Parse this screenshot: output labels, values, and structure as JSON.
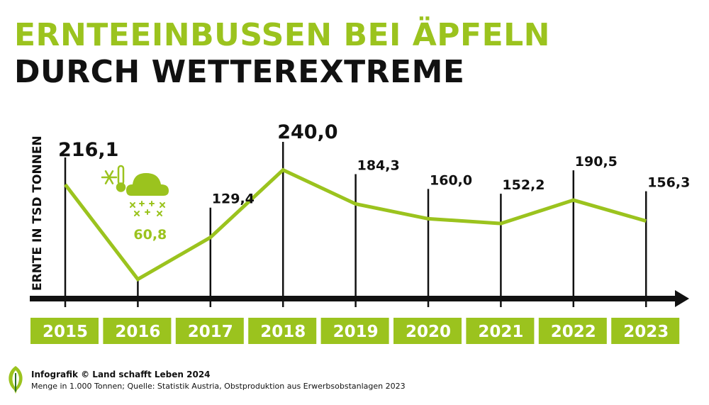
{
  "header": {
    "title_line1": "ERNTEEINBUSSEN BEI ÄPFELN",
    "title_line2": "DURCH WETTEREXTREME"
  },
  "colors": {
    "accent": "#9bc31e",
    "text": "#111111",
    "axis": "#111111"
  },
  "chart_data": {
    "type": "line",
    "ylabel": "ERNTE IN TSD TONNEN",
    "categories": [
      "2015",
      "2016",
      "2017",
      "2018",
      "2019",
      "2020",
      "2021",
      "2022",
      "2023"
    ],
    "values": [
      216.1,
      60.8,
      129.4,
      240.0,
      184.3,
      160.0,
      152.2,
      190.5,
      156.3
    ],
    "value_labels": [
      "216,1",
      "60,8",
      "129,4",
      "240,0",
      "184,3",
      "160,0",
      "152,2",
      "190,5",
      "156,3"
    ],
    "highlight_index": 1,
    "highlight_icon": "frost-weather-icon",
    "ylim": [
      40,
      260
    ],
    "grid": false,
    "legend": "none"
  },
  "footer": {
    "credit": "Infografik © Land schafft Leben 2024",
    "source": "Menge in 1.000 Tonnen; Quelle: Statistik Austria, Obstproduktion aus Erwerbsobstanlagen 2023",
    "logo_icon": "leaf-logo-icon"
  }
}
